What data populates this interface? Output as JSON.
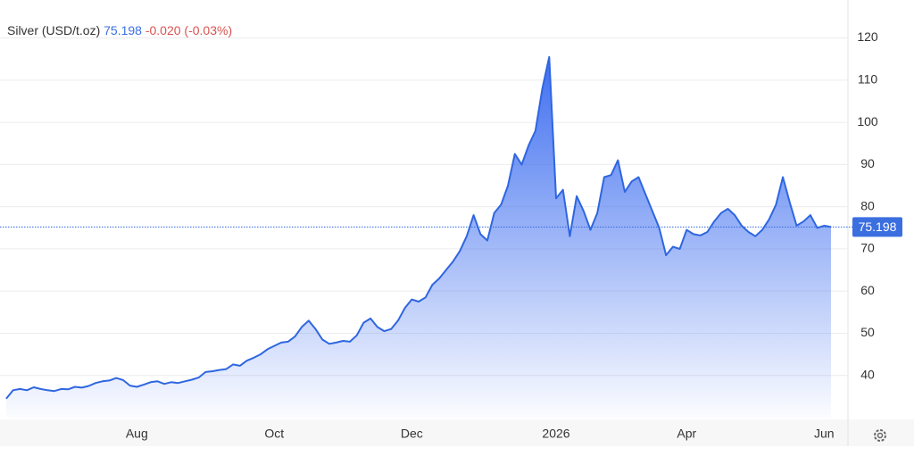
{
  "chart_data": {
    "type": "area",
    "title": "Silver (USD/t.oz)",
    "change": "-0.020 (-0.03%)",
    "color": "#2f66e0",
    "grid": true,
    "ylim": [
      30,
      129
    ],
    "yticks": [
      40,
      50,
      60,
      70,
      80,
      90,
      100,
      110,
      120
    ],
    "categories": [
      null,
      null,
      null,
      null,
      null,
      null,
      null,
      null,
      null,
      null,
      null,
      null,
      null,
      null,
      null,
      null,
      null,
      null,
      null,
      "Aug",
      null,
      null,
      null,
      null,
      null,
      null,
      null,
      null,
      null,
      null,
      null,
      null,
      null,
      null,
      null,
      null,
      null,
      null,
      null,
      "Oct",
      null,
      null,
      null,
      null,
      null,
      null,
      null,
      null,
      null,
      null,
      null,
      null,
      null,
      null,
      null,
      null,
      null,
      null,
      null,
      "Dec",
      null,
      null,
      null,
      null,
      null,
      null,
      null,
      null,
      null,
      null,
      null,
      null,
      null,
      null,
      null,
      null,
      null,
      null,
      null,
      null,
      "2026",
      null,
      null,
      null,
      null,
      null,
      null,
      null,
      null,
      null,
      null,
      null,
      null,
      null,
      null,
      null,
      null,
      null,
      null,
      "Apr",
      null,
      null,
      null,
      null,
      null,
      null,
      null,
      null,
      null,
      null,
      null,
      null,
      null,
      null,
      null,
      null,
      null,
      null,
      null,
      "Jun",
      null
    ],
    "values": [
      34.5,
      36.5,
      36.8,
      36.5,
      37.2,
      36.8,
      36.5,
      36.3,
      36.8,
      36.7,
      37.3,
      37.1,
      37.5,
      38.2,
      38.6,
      38.8,
      39.4,
      38.9,
      37.6,
      37.3,
      37.8,
      38.4,
      38.6,
      38.0,
      38.4,
      38.2,
      38.6,
      39.0,
      39.5,
      40.8,
      41.0,
      41.3,
      41.5,
      42.6,
      42.3,
      43.5,
      44.2,
      45.0,
      46.2,
      47.0,
      47.8,
      48.0,
      49.2,
      51.5,
      53.0,
      51.0,
      48.5,
      47.5,
      47.8,
      48.2,
      48.0,
      49.5,
      52.5,
      53.5,
      51.5,
      50.5,
      51.0,
      53.0,
      56.0,
      58.0,
      57.5,
      58.5,
      61.5,
      63.0,
      65.0,
      67.0,
      69.5,
      73.0,
      78.0,
      73.5,
      72.0,
      78.5,
      80.5,
      85.0,
      92.5,
      90.0,
      94.5,
      98.0,
      108.0,
      115.5,
      82.0,
      84.0,
      73.0,
      82.5,
      79.0,
      74.5,
      78.5,
      87.0,
      87.5,
      91.0,
      83.5,
      86.0,
      87.0,
      83.0,
      79.0,
      75.0,
      68.5,
      70.5,
      70.0,
      74.5,
      73.5,
      73.2,
      74.0,
      76.5,
      78.5,
      79.5,
      78.0,
      75.5,
      74.0,
      73.0,
      74.5,
      77.0,
      80.5,
      87.0,
      81.0,
      75.5,
      76.5,
      78.0,
      75.0,
      75.5,
      75.198
    ]
  }
}
